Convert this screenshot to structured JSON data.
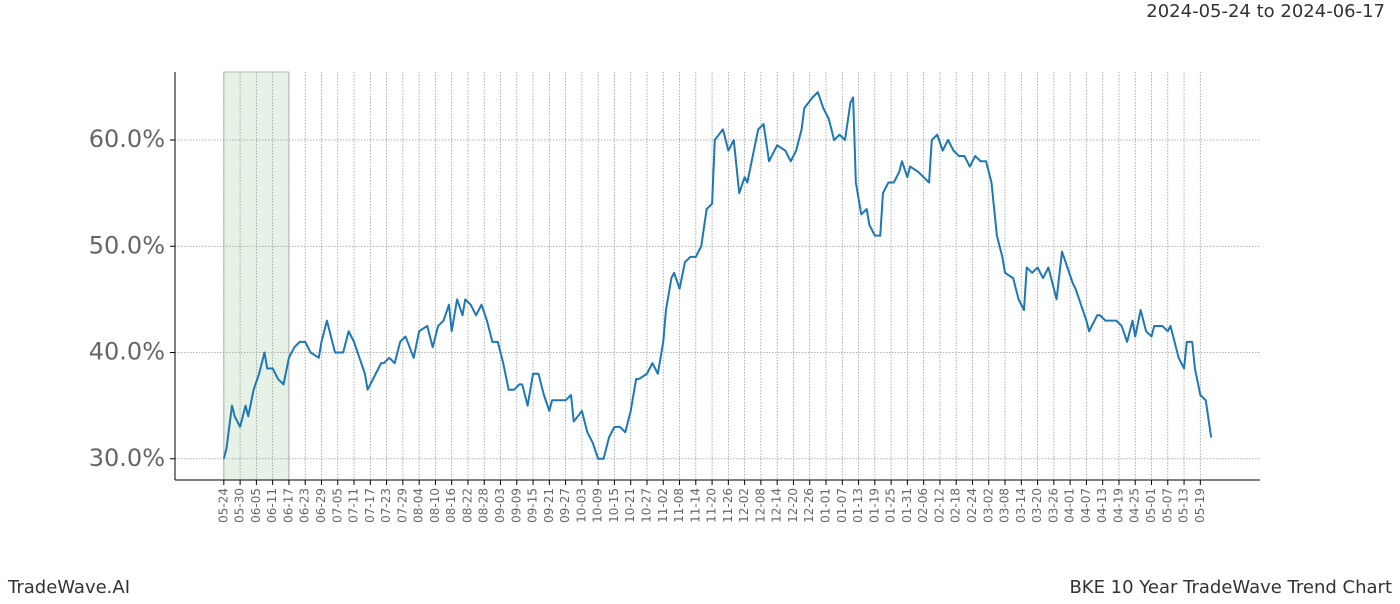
{
  "chart_data": {
    "type": "line",
    "title": "BKE 10 Year TradeWave Trend Chart",
    "subtitle": "2024-05-24 to 2024-06-17",
    "source": "TradeWave.AI",
    "color": "#1f77b4",
    "highlight": [
      0,
      24
    ],
    "highlight_color": "#e6f2e6",
    "grid": true,
    "xlim": [
      -18,
      382
    ],
    "ylim": [
      28,
      66.4
    ],
    "yticks": [
      {
        "value": 30,
        "label": "30.0%"
      },
      {
        "value": 40,
        "label": "40.0%"
      },
      {
        "value": 50,
        "label": "50.0%"
      },
      {
        "value": 60,
        "label": "60.0%"
      }
    ],
    "xticks": [
      {
        "value": 0,
        "label": "05-24"
      },
      {
        "value": 6,
        "label": "05-30"
      },
      {
        "value": 12,
        "label": "06-05"
      },
      {
        "value": 18,
        "label": "06-11"
      },
      {
        "value": 24,
        "label": "06-17"
      },
      {
        "value": 30,
        "label": "06-23"
      },
      {
        "value": 36,
        "label": "06-29"
      },
      {
        "value": 42,
        "label": "07-05"
      },
      {
        "value": 48,
        "label": "07-11"
      },
      {
        "value": 54,
        "label": "07-17"
      },
      {
        "value": 60,
        "label": "07-23"
      },
      {
        "value": 66,
        "label": "07-29"
      },
      {
        "value": 72,
        "label": "08-04"
      },
      {
        "value": 78,
        "label": "08-10"
      },
      {
        "value": 84,
        "label": "08-16"
      },
      {
        "value": 90,
        "label": "08-22"
      },
      {
        "value": 96,
        "label": "08-28"
      },
      {
        "value": 102,
        "label": "09-03"
      },
      {
        "value": 108,
        "label": "09-09"
      },
      {
        "value": 114,
        "label": "09-15"
      },
      {
        "value": 120,
        "label": "09-21"
      },
      {
        "value": 126,
        "label": "09-27"
      },
      {
        "value": 132,
        "label": "10-03"
      },
      {
        "value": 138,
        "label": "10-09"
      },
      {
        "value": 144,
        "label": "10-15"
      },
      {
        "value": 150,
        "label": "10-21"
      },
      {
        "value": 156,
        "label": "10-27"
      },
      {
        "value": 162,
        "label": "11-02"
      },
      {
        "value": 168,
        "label": "11-08"
      },
      {
        "value": 174,
        "label": "11-14"
      },
      {
        "value": 180,
        "label": "11-20"
      },
      {
        "value": 186,
        "label": "11-26"
      },
      {
        "value": 192,
        "label": "12-02"
      },
      {
        "value": 198,
        "label": "12-08"
      },
      {
        "value": 204,
        "label": "12-14"
      },
      {
        "value": 210,
        "label": "12-20"
      },
      {
        "value": 216,
        "label": "12-26"
      },
      {
        "value": 222,
        "label": "01-01"
      },
      {
        "value": 228,
        "label": "01-07"
      },
      {
        "value": 234,
        "label": "01-13"
      },
      {
        "value": 240,
        "label": "01-19"
      },
      {
        "value": 246,
        "label": "01-25"
      },
      {
        "value": 252,
        "label": "01-31"
      },
      {
        "value": 258,
        "label": "02-06"
      },
      {
        "value": 264,
        "label": "02-12"
      },
      {
        "value": 270,
        "label": "02-18"
      },
      {
        "value": 276,
        "label": "02-24"
      },
      {
        "value": 282,
        "label": "03-02"
      },
      {
        "value": 288,
        "label": "03-08"
      },
      {
        "value": 294,
        "label": "03-14"
      },
      {
        "value": 300,
        "label": "03-20"
      },
      {
        "value": 306,
        "label": "03-26"
      },
      {
        "value": 312,
        "label": "04-01"
      },
      {
        "value": 318,
        "label": "04-07"
      },
      {
        "value": 324,
        "label": "04-13"
      },
      {
        "value": 330,
        "label": "04-19"
      },
      {
        "value": 336,
        "label": "04-25"
      },
      {
        "value": 342,
        "label": "05-01"
      },
      {
        "value": 348,
        "label": "05-07"
      },
      {
        "value": 354,
        "label": "05-13"
      },
      {
        "value": 360,
        "label": "05-19"
      }
    ],
    "x": [
      0,
      1,
      3,
      4,
      6,
      8,
      9,
      11,
      13,
      15,
      16,
      18,
      20,
      22,
      24,
      26,
      28,
      30,
      32,
      35,
      36,
      38,
      39,
      41,
      44,
      46,
      48,
      50,
      52,
      53,
      56,
      58,
      59,
      61,
      63,
      65,
      67,
      70,
      72,
      75,
      77,
      79,
      81,
      83,
      84,
      86,
      88,
      89,
      91,
      93,
      95,
      97,
      99,
      101,
      103,
      105,
      107,
      109,
      110,
      112,
      114,
      116,
      118,
      120,
      121,
      124,
      126,
      128,
      129,
      132,
      134,
      136,
      138,
      140,
      142,
      144,
      146,
      148,
      150,
      152,
      153,
      156,
      158,
      160,
      162,
      163,
      165,
      166,
      168,
      170,
      172,
      174,
      176,
      178,
      180,
      181,
      184,
      186,
      188,
      190,
      192,
      193,
      195,
      197,
      199,
      201,
      202,
      204,
      207,
      209,
      211,
      213,
      214,
      217,
      219,
      221,
      223,
      225,
      227,
      229,
      231,
      232,
      233,
      235,
      237,
      238,
      240,
      242,
      243,
      245,
      247,
      249,
      250,
      252,
      253,
      256,
      258,
      260,
      261,
      263,
      265,
      267,
      269,
      271,
      273,
      275,
      277,
      279,
      281,
      283,
      285,
      287,
      288,
      291,
      293,
      295,
      296,
      298,
      300,
      302,
      304,
      307,
      309,
      311,
      313,
      314,
      316,
      318,
      319,
      322,
      323,
      325,
      327,
      329,
      331,
      333,
      335,
      336,
      338,
      340,
      342,
      343,
      346,
      348,
      349,
      352,
      354,
      355,
      357,
      358,
      360,
      362,
      364
    ],
    "values": [
      30,
      31,
      35,
      34,
      33,
      35,
      34,
      36.5,
      38,
      40,
      38.5,
      38.5,
      37.5,
      37,
      39.5,
      40.5,
      41,
      41,
      40,
      39.5,
      41,
      43,
      42,
      40,
      40,
      42,
      41,
      39.5,
      38,
      36.5,
      38,
      39,
      39,
      39.5,
      39,
      41,
      41.5,
      39.5,
      42,
      42.5,
      40.5,
      42.5,
      43,
      44.5,
      42,
      45,
      43.5,
      45,
      44.5,
      43.5,
      44.5,
      43,
      41,
      41,
      39,
      36.5,
      36.5,
      37,
      37,
      35,
      38,
      38,
      36,
      34.5,
      35.5,
      35.5,
      35.5,
      36,
      33.5,
      34.5,
      32.5,
      31.5,
      30,
      30,
      32,
      33,
      33,
      32.5,
      34.5,
      37.5,
      37.5,
      38,
      39,
      38,
      41,
      44,
      47,
      47.5,
      46,
      48.5,
      49,
      49,
      50,
      53.5,
      54,
      60,
      61,
      59,
      60,
      55,
      56.5,
      56,
      58.5,
      61,
      61.5,
      58,
      58.5,
      59.5,
      59,
      58,
      59,
      61,
      63,
      64,
      64.5,
      63,
      62,
      60,
      60.5,
      60,
      63.5,
      64,
      56,
      53,
      53.5,
      52,
      51,
      51,
      55,
      56,
      56,
      57,
      58,
      56.5,
      57.5,
      57,
      56.5,
      56,
      60,
      60.5,
      59,
      60,
      59,
      58.5,
      58.5,
      57.5,
      58.5,
      58,
      58,
      56,
      51,
      49,
      47.5,
      47,
      45,
      44,
      48,
      47.5,
      48,
      47,
      48,
      45,
      49.5,
      48,
      46.5,
      46,
      44.5,
      43,
      42,
      43.5,
      43.5,
      43,
      43,
      43,
      42.5,
      41,
      43,
      41.5,
      44,
      42,
      41.5,
      42.5,
      42.5,
      42,
      42.5,
      39.5,
      38.5,
      41,
      41,
      38.5,
      36,
      35.5,
      32
    ]
  }
}
